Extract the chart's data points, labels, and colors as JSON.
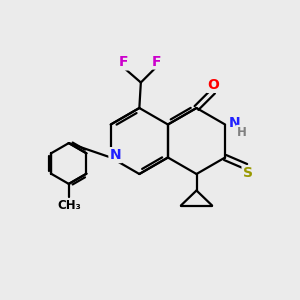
{
  "bg_color": "#ebebeb",
  "bond_color": "#000000",
  "bond_width": 1.6,
  "atom_colors": {
    "N": "#2020ff",
    "O": "#ff0000",
    "S": "#999900",
    "F": "#cc00cc",
    "H": "#808080",
    "C": "#000000"
  },
  "font_size": 10,
  "small_font": 8.5
}
